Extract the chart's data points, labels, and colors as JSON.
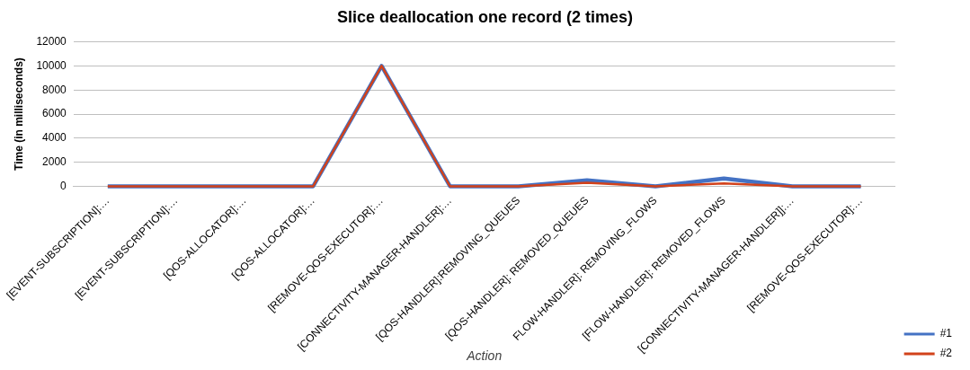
{
  "chart_data": {
    "type": "line",
    "title": "Slice deallocation one record (2 times)",
    "xlabel": "Action",
    "ylabel": "Time (in milliseconds)",
    "categories": [
      "[EVENT-SUBSCRIPTION]:…",
      "[EVENT-SUBSCRIPTION]:…",
      "[QOS-ALLOCATOR]:…",
      "[QOS-ALLOCATOR]:…",
      "[REMOVE-QOS-EXECUTOR]:…",
      "[CONNECTIVITY-MANAGER-HANDLER]:…",
      "[QOS-HANDLER]:REMOVING_QUEUES",
      "[QOS-HANDLER]: REMOVED_QUEUES",
      "FLOW-HANDLER]: REMOVING_FLOWS",
      "[FLOW-HANDLER]: REMOVED_FLOWS",
      "[CONNECTIVITY-MANAGER-HANDLER]]:…",
      "[REMOVE-QOS-EXECUTOR]:…"
    ],
    "series": [
      {
        "name": "#1",
        "color": "#4472c4",
        "values": [
          0,
          0,
          0,
          0,
          10000,
          0,
          0,
          500,
          0,
          650,
          0,
          0
        ]
      },
      {
        "name": "#2",
        "color": "#d2421b",
        "values": [
          0,
          0,
          0,
          0,
          10000,
          0,
          0,
          300,
          0,
          250,
          0,
          0
        ]
      }
    ],
    "ylim": [
      0,
      12000
    ],
    "yticks": [
      0,
      2000,
      4000,
      6000,
      8000,
      10000,
      12000
    ],
    "grid": "y",
    "legend": "right",
    "marker": "none",
    "line_style": "solid"
  }
}
